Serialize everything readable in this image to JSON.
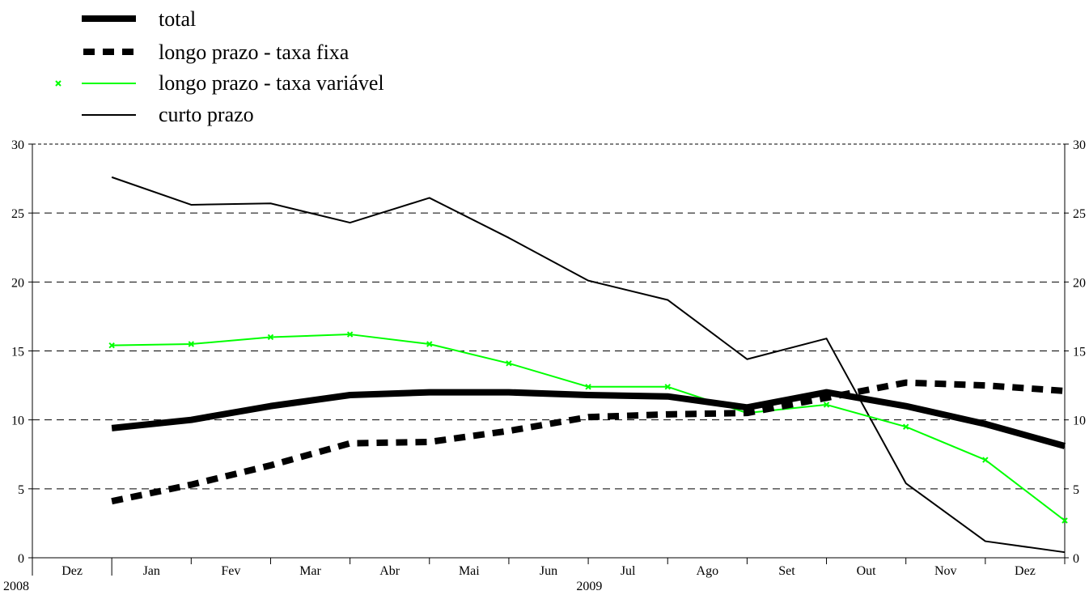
{
  "chart_data": {
    "type": "line",
    "title": "",
    "xlabel": "",
    "ylabel": "",
    "ylim": [
      0,
      30
    ],
    "yticks": [
      0,
      5,
      10,
      15,
      20,
      25,
      30
    ],
    "grid": "horizontal dashed",
    "legend_position": "top-left",
    "x_ticks": [
      "Dez",
      "Jan",
      "Fev",
      "Mar",
      "Abr",
      "Mai",
      "Jun",
      "Jul",
      "Ago",
      "Set",
      "Out",
      "Nov",
      "Dez"
    ],
    "year_labels": [
      "2008",
      "2009"
    ],
    "x": [
      "2008-12",
      "2009-01",
      "2009-02",
      "2009-03",
      "2009-04",
      "2009-05",
      "2009-06",
      "2009-07",
      "2009-08",
      "2009-09",
      "2009-10",
      "2009-11",
      "2009-12"
    ],
    "series": [
      {
        "name": "total",
        "style": "thick-solid",
        "color": "#000000",
        "values": [
          9.4,
          10.0,
          11.0,
          11.8,
          12.0,
          12.0,
          11.8,
          11.7,
          10.9,
          12.0,
          11.0,
          9.7,
          8.1
        ]
      },
      {
        "name": "longo prazo - taxa fixa",
        "style": "thick-dashed",
        "color": "#000000",
        "values": [
          4.1,
          5.3,
          6.7,
          8.3,
          8.4,
          9.2,
          10.2,
          10.4,
          10.5,
          11.6,
          12.7,
          12.5,
          12.1
        ]
      },
      {
        "name": "longo prazo - taxa variável",
        "style": "thin-solid-markers",
        "color": "#00ff00",
        "values": [
          15.4,
          15.5,
          16.0,
          16.2,
          15.5,
          14.1,
          12.4,
          12.4,
          10.5,
          11.1,
          9.5,
          7.1,
          2.7
        ]
      },
      {
        "name": "curto prazo",
        "style": "thin-solid",
        "color": "#000000",
        "values": [
          27.6,
          25.6,
          25.7,
          24.3,
          26.1,
          23.2,
          20.1,
          18.7,
          14.4,
          15.9,
          5.4,
          1.2,
          0.4
        ]
      }
    ]
  }
}
